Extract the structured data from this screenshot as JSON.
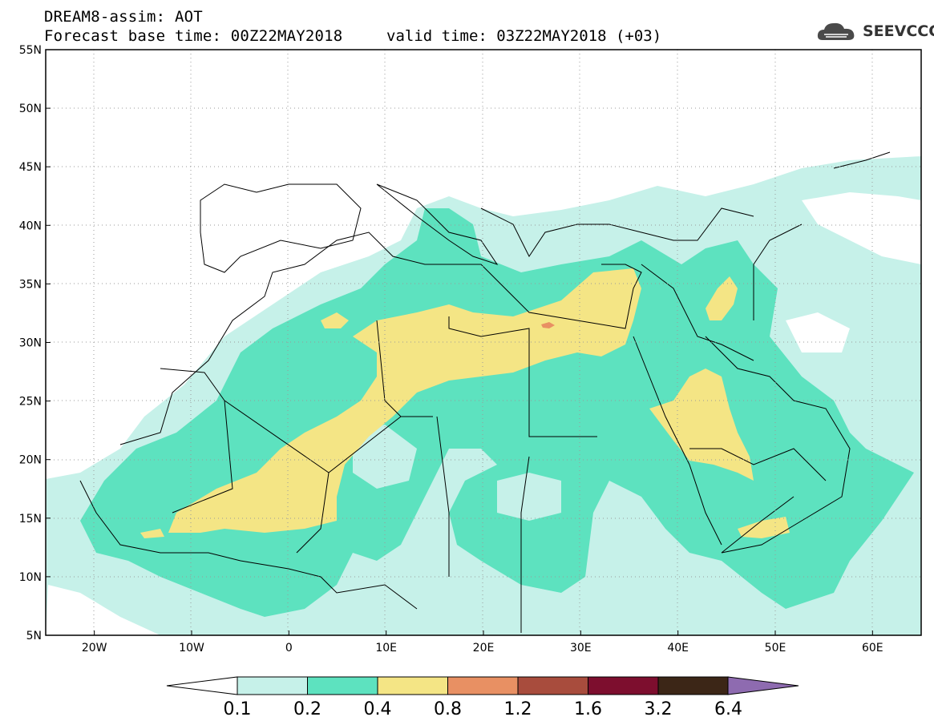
{
  "header": {
    "line1": "DREAM8-assim: AOT",
    "line2": "Forecast base time: 00Z22MAY2018",
    "valid": "valid time: 03Z22MAY2018 (+03)",
    "logo_text": "SEEVCCC"
  },
  "axes": {
    "lat_labels": [
      "55N",
      "50N",
      "45N",
      "40N",
      "35N",
      "30N",
      "25N",
      "20N",
      "15N",
      "10N",
      "5N"
    ],
    "lon_labels": [
      "20W",
      "10W",
      "0",
      "10E",
      "20E",
      "30E",
      "40E",
      "50E",
      "60E"
    ],
    "lat_range": [
      5,
      55
    ],
    "lon_range": [
      -25,
      65
    ]
  },
  "colorbar": {
    "labels": [
      "0.1",
      "0.2",
      "0.4",
      "0.8",
      "1.2",
      "1.6",
      "3.2",
      "6.4"
    ],
    "colors": [
      "#c6f1e9",
      "#5de2bf",
      "#f4e585",
      "#e89063",
      "#a84c3d",
      "#7d0e2e",
      "#3c2617",
      "#8e6bb0"
    ],
    "under_color": "#ffffff"
  },
  "fields": {
    "level_0.1": "#c6f1e9",
    "level_0.2": "#5de2bf",
    "level_0.4": "#f4e585",
    "level_0.8": "#e89063"
  }
}
